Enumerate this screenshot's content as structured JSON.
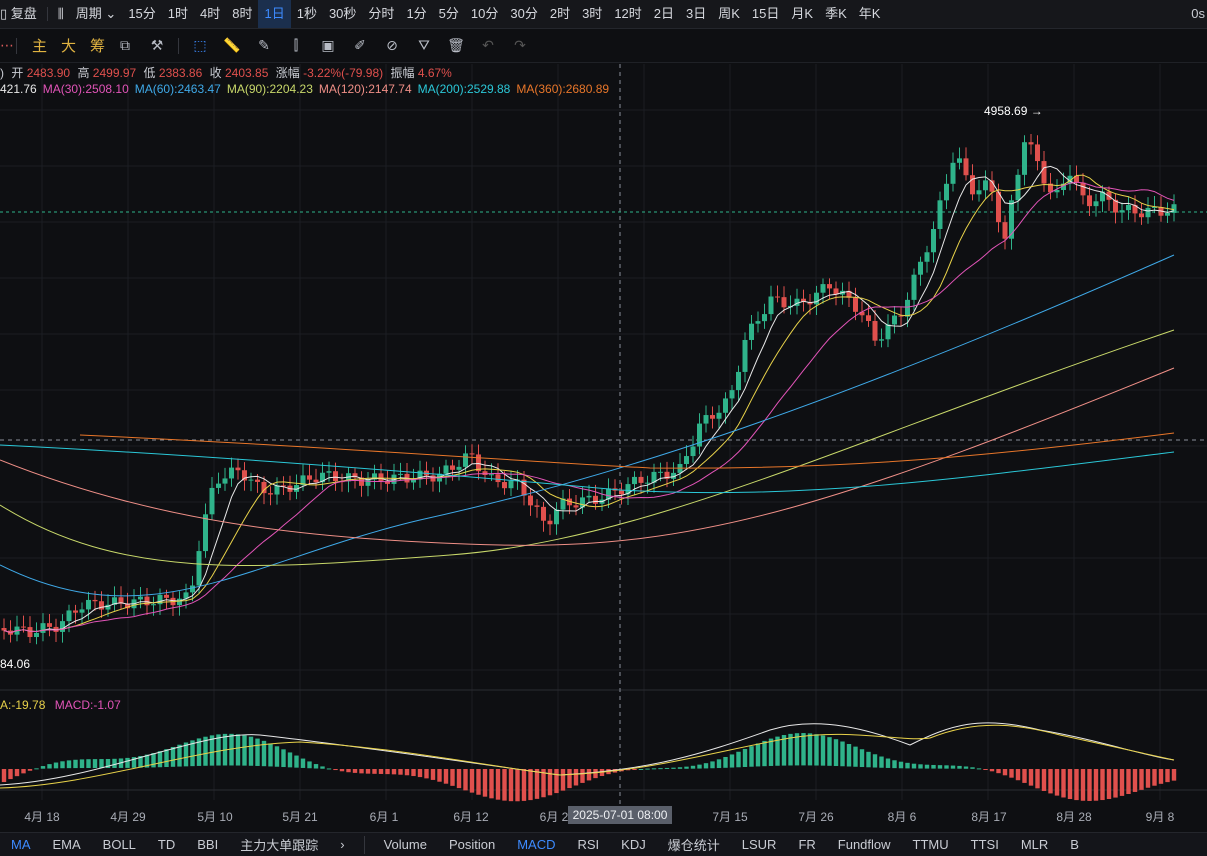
{
  "topbar": {
    "left_label": "复盘",
    "period_label": "周期",
    "intervals": [
      "15分",
      "1时",
      "4时",
      "8时",
      "1日",
      "1秒",
      "30秒",
      "分时",
      "1分",
      "5分",
      "10分",
      "30分",
      "2时",
      "3时",
      "12时",
      "2日",
      "3日",
      "周K",
      "15日",
      "月K",
      "季K",
      "年K"
    ],
    "active_interval": "1日",
    "right_text": "0s"
  },
  "toolbar": {
    "chars": [
      "主",
      "大",
      "筹"
    ]
  },
  "info": {
    "prefix": ")",
    "open_label": "开",
    "open": "2483.90",
    "high_label": "高",
    "high": "2499.97",
    "low_label": "低",
    "low": "2383.86",
    "close_label": "收",
    "close": "2403.85",
    "change_label": "涨幅",
    "change": "-3.22%(-79.98)",
    "amp_label": "振幅",
    "amp": "4.67%"
  },
  "ma_legend": [
    {
      "label": "421.76",
      "color": "#e8e8e8"
    },
    {
      "label": "MA(30):2508.10",
      "color": "#e254b8"
    },
    {
      "label": "MA(60):2463.47",
      "color": "#3fa9e8"
    },
    {
      "label": "MA(90):2204.23",
      "color": "#c8d86a"
    },
    {
      "label": "MA(120):2147.74",
      "color": "#ef8f87"
    },
    {
      "label": "MA(200):2529.88",
      "color": "#2bc8d8"
    },
    {
      "label": "MA(360):2680.89",
      "color": "#e8762a"
    }
  ],
  "macd_legend": {
    "dea": "A:-19.78",
    "macd": "MACD:-1.07"
  },
  "annotations": {
    "high_marker": "4958.69 →",
    "low_marker": "84.06"
  },
  "xaxis": {
    "labels": [
      "4月 18",
      "4月 29",
      "5月 10",
      "5月 21",
      "6月 1",
      "6月 12",
      "6月 2",
      "7月 15",
      "7月 26",
      "8月 6",
      "8月 17",
      "8月 28",
      "9月 8"
    ],
    "crosshair_label": "2025-07-01 08:00"
  },
  "bottombar": {
    "left_tabs": [
      "MA",
      "EMA",
      "BOLL",
      "TD",
      "BBI",
      "主力大单跟踪"
    ],
    "active_left": "MA",
    "more": "›",
    "right_tabs": [
      "Volume",
      "Position",
      "MACD",
      "RSI",
      "KDJ",
      "爆仓统计",
      "LSUR",
      "FR",
      "Fundflow",
      "TTMU",
      "TTSI",
      "MLR",
      "B"
    ],
    "active_right": "MACD"
  },
  "colors": {
    "up": "#2fb38a",
    "down": "#e0504d",
    "accent": "#3d8bff"
  },
  "chart_data": {
    "type": "candlestick",
    "symbol_price_high": 4958.69,
    "last_close": 2403.85,
    "ma_periods": [
      30,
      60,
      90,
      120,
      200,
      360
    ],
    "indicator": "MACD",
    "dea": -19.78,
    "macd": -1.07
  }
}
